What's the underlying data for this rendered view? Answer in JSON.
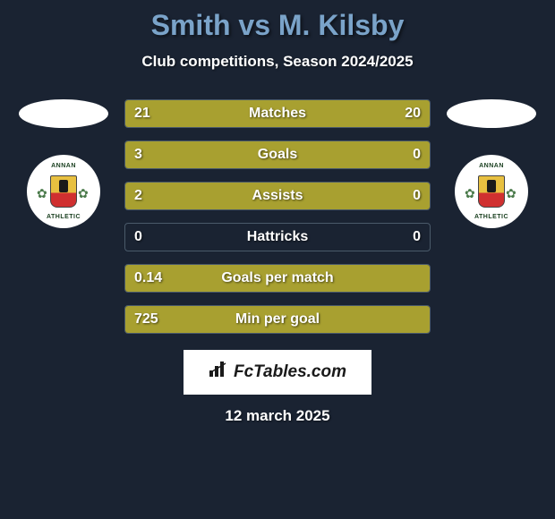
{
  "title": "Smith vs M. Kilsby",
  "subtitle": "Club competitions, Season 2024/2025",
  "date": "12 march 2025",
  "fctables_text": "FcTables.com",
  "colors": {
    "background": "#1a2332",
    "title": "#7aa3c9",
    "bar_left": "#a8a030",
    "bar_right": "#a8a030",
    "bar_empty": "#1a2332",
    "border": "#4a5a6a",
    "text": "#ffffff"
  },
  "badge": {
    "top_text": "ANNAN",
    "bottom_text": "ATHLETIC"
  },
  "stats": [
    {
      "label": "Matches",
      "left_val": "21",
      "right_val": "20",
      "left_pct": 51.2,
      "right_pct": 48.8
    },
    {
      "label": "Goals",
      "left_val": "3",
      "right_val": "0",
      "left_pct": 76.0,
      "right_pct": 24.0
    },
    {
      "label": "Assists",
      "left_val": "2",
      "right_val": "0",
      "left_pct": 76.0,
      "right_pct": 24.0
    },
    {
      "label": "Hattricks",
      "left_val": "0",
      "right_val": "0",
      "left_pct": 0,
      "right_pct": 0
    },
    {
      "label": "Goals per match",
      "left_val": "0.14",
      "right_val": "",
      "left_pct": 100,
      "right_pct": 0
    },
    {
      "label": "Min per goal",
      "left_val": "725",
      "right_val": "",
      "left_pct": 100,
      "right_pct": 0
    }
  ]
}
